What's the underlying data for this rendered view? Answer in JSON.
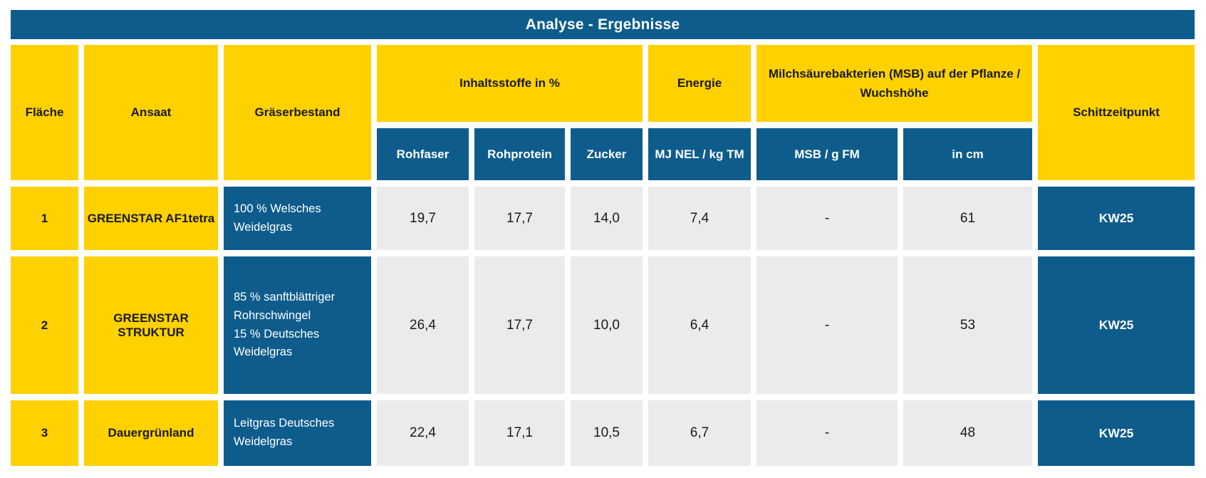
{
  "title": "Analyse - Ergebnisse",
  "colors": {
    "header_blue": "#0E5C8C",
    "accent_yellow": "#FFD100",
    "data_cell_gray": "#EBEBEB",
    "text_dark": "#1A1A1A",
    "text_light": "#FFFFFF"
  },
  "header": {
    "flaeche": "Fläche",
    "ansaat": "Ansaat",
    "graeserbestand": "Gräserbestand",
    "inhaltsstoffe_group": "Inhaltsstoffe in %",
    "energie_group": "Energie",
    "msb_group": "Milchsäurebakterien (MSB) auf der Pflanze / Wuchshöhe",
    "schittzeitpunkt": "Schittzeitpunkt",
    "rohfaser": "Rohfaser",
    "rohprotein": "Rohprotein",
    "zucker": "Zucker",
    "mj_nel": "MJ NEL / kg TM",
    "msb_g_fm": "MSB / g FM",
    "in_cm": "in cm"
  },
  "rows": [
    {
      "flaeche": "1",
      "ansaat": "GREENSTAR AF1tetra",
      "graeserbestand": "100 % Welsches Weidelgras",
      "rohfaser": "19,7",
      "rohprotein": "17,7",
      "zucker": "14,0",
      "mj_nel": "7,4",
      "msb_g_fm": "-",
      "in_cm": "61",
      "schittzeitpunkt": "KW25"
    },
    {
      "flaeche": "2",
      "ansaat": "GREENSTAR STRUKTUR",
      "graeserbestand": "85 % sanftblättriger Rohrschwingel\n15 % Deutsches Weidelgras",
      "rohfaser": "26,4",
      "rohprotein": "17,7",
      "zucker": "10,0",
      "mj_nel": "6,4",
      "msb_g_fm": "-",
      "in_cm": "53",
      "schittzeitpunkt": "KW25"
    },
    {
      "flaeche": "3",
      "ansaat": "Dauergrünland",
      "graeserbestand": "Leitgras Deutsches Weidelgras",
      "rohfaser": "22,4",
      "rohprotein": "17,1",
      "zucker": "10,5",
      "mj_nel": "6,7",
      "msb_g_fm": "-",
      "in_cm": "48",
      "schittzeitpunkt": "KW25"
    }
  ],
  "chart_data": {
    "type": "table",
    "title": "Analyse - Ergebnisse",
    "column_groups": [
      {
        "label": "Inhaltsstoffe in %",
        "columns": [
          "Rohfaser",
          "Rohprotein",
          "Zucker"
        ]
      },
      {
        "label": "Energie",
        "columns": [
          "MJ NEL / kg TM"
        ]
      },
      {
        "label": "Milchsäurebakterien (MSB) auf der Pflanze / Wuchshöhe",
        "columns": [
          "MSB / g FM",
          "in cm"
        ]
      }
    ],
    "columns": [
      "Fläche",
      "Ansaat",
      "Gräserbestand",
      "Rohfaser",
      "Rohprotein",
      "Zucker",
      "MJ NEL / kg TM",
      "MSB / g FM",
      "in cm",
      "Schittzeitpunkt"
    ],
    "rows": [
      [
        "1",
        "GREENSTAR AF1tetra",
        "100 % Welsches Weidelgras",
        "19,7",
        "17,7",
        "14,0",
        "7,4",
        "-",
        "61",
        "KW25"
      ],
      [
        "2",
        "GREENSTAR STRUKTUR",
        "85 % sanftblättriger Rohrschwingel 15 % Deutsches Weidelgras",
        "26,4",
        "17,7",
        "10,0",
        "6,4",
        "-",
        "53",
        "KW25"
      ],
      [
        "3",
        "Dauergrünland",
        "Leitgras Deutsches Weidelgras",
        "22,4",
        "17,1",
        "10,5",
        "6,7",
        "-",
        "48",
        "KW25"
      ]
    ]
  }
}
